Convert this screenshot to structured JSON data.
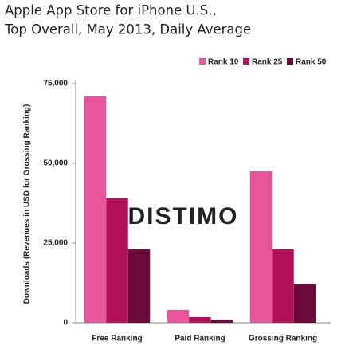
{
  "chart_data": {
    "type": "bar",
    "title": [
      "Apple App Store for iPhone U.S.,",
      "Top Overall, May 2013, Daily Average"
    ],
    "y_label": "Downloads (Revenues in USD for Grossing Ranking)",
    "watermark": "DISTIMO",
    "categories": [
      "Free Ranking",
      "Paid Ranking",
      "Grossing Ranking"
    ],
    "series": [
      {
        "name": "Rank 10",
        "color": "#e8559b",
        "values": [
          71000,
          4000,
          47500
        ]
      },
      {
        "name": "Rank 25",
        "color": "#b3125a",
        "values": [
          39000,
          1750,
          23000
        ]
      },
      {
        "name": "Rank 50",
        "color": "#6e0a3a",
        "values": [
          23000,
          1000,
          12000
        ]
      }
    ],
    "ylim": [
      0,
      75000
    ],
    "yticks": [
      0,
      {
        "value": 25000,
        "label": "25,000"
      },
      {
        "value": 50000,
        "label": "50,000"
      },
      {
        "value": 75000,
        "label": "75,000"
      }
    ],
    "legend": "top-right",
    "grid": false
  }
}
